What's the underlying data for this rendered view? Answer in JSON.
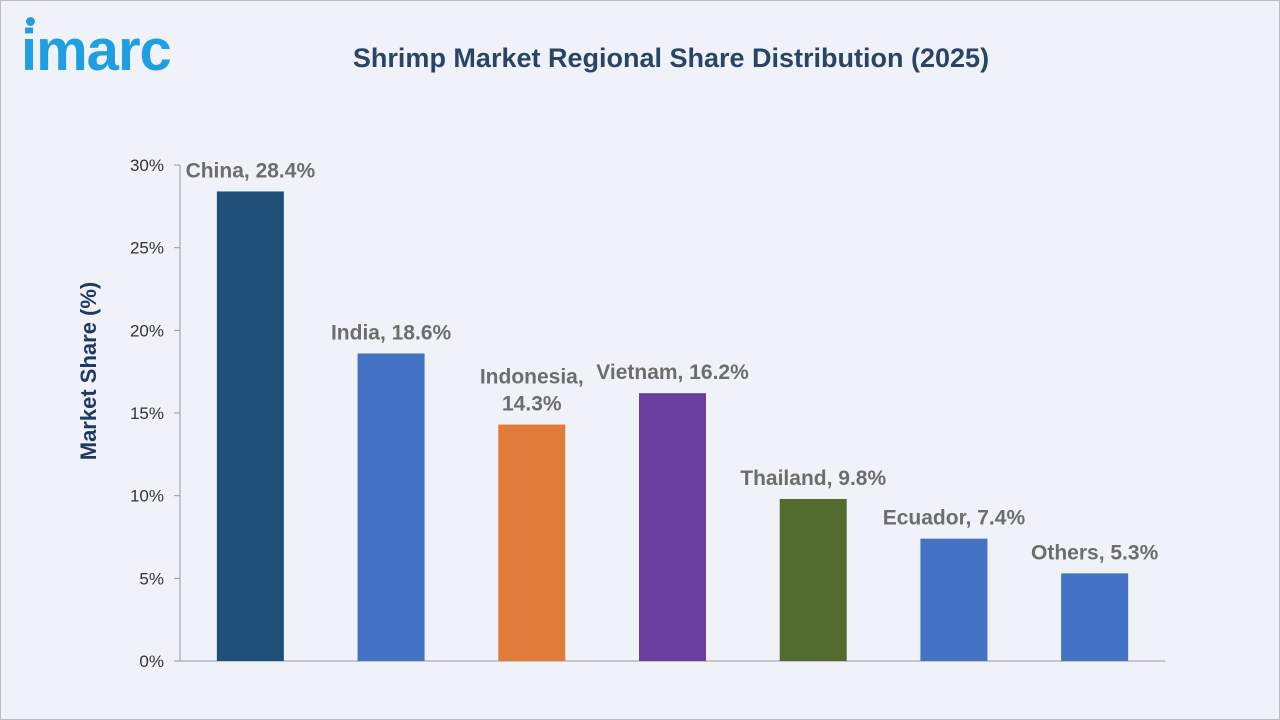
{
  "brand": {
    "logo_text": "imarc",
    "color": "#1f9fe0"
  },
  "chart_data": {
    "type": "bar",
    "title": "Shrimp Market Regional Share Distribution (2025)",
    "ylabel": "Market Share (%)",
    "xlabel": "",
    "ylim": [
      0,
      30
    ],
    "yticks": [
      0,
      5,
      10,
      15,
      20,
      25,
      30
    ],
    "ytick_labels": [
      "0%",
      "5%",
      "10%",
      "15%",
      "20%",
      "25%",
      "30%"
    ],
    "grid": false,
    "categories": [
      "China",
      "India",
      "Indonesia",
      "Vietnam",
      "Thailand",
      "Ecuador",
      "Others"
    ],
    "values": [
      28.4,
      18.6,
      14.3,
      16.2,
      9.8,
      7.4,
      5.3
    ],
    "data_labels": [
      [
        "China, 28.4%"
      ],
      [
        "India, 18.6%"
      ],
      [
        "Indonesia,",
        "14.3%"
      ],
      [
        "Vietnam, 16.2%"
      ],
      [
        "Thailand, 9.8%"
      ],
      [
        "Ecuador, 7.4%"
      ],
      [
        "Others, 5.3%"
      ]
    ],
    "colors": [
      "#1f4e79",
      "#4472c4",
      "#e07b39",
      "#6b3fa0",
      "#546b2f",
      "#4472c4",
      "#4472c4"
    ]
  }
}
